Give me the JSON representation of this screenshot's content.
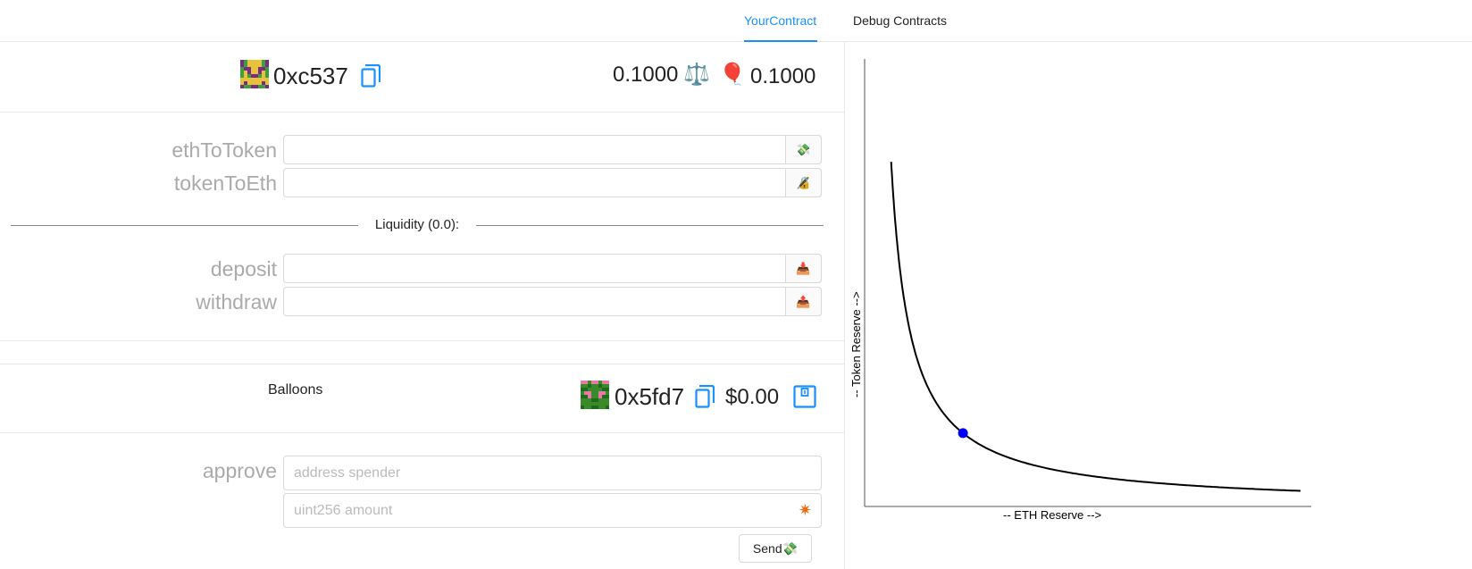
{
  "nav": {
    "tabs": [
      {
        "label": "YourContract",
        "active": true
      },
      {
        "label": "Debug Contracts",
        "active": false
      }
    ]
  },
  "account": {
    "address": "0xc537",
    "eth_balance": "0.1000",
    "token_balance": "0.1000"
  },
  "swap": {
    "eth_to_token_label": "ethToToken",
    "token_to_eth_label": "tokenToEth"
  },
  "liquidity": {
    "title": "Liquidity (0.0):",
    "deposit_label": "deposit",
    "withdraw_label": "withdraw"
  },
  "token": {
    "name": "Balloons",
    "address": "0x5fd7",
    "usd_balance": "$0.00"
  },
  "approve": {
    "label": "approve",
    "spender_placeholder": "address spender",
    "amount_placeholder": "uint256 amount",
    "send_label": "Send💸"
  },
  "chart_data": {
    "type": "line",
    "title": "",
    "xlabel": "-- ETH Reserve -->",
    "ylabel": "-- Token Reserve -->",
    "curve": "x*y=k",
    "point": {
      "x": 1,
      "y": 1
    },
    "point_color": "#0000ff",
    "grid": false
  },
  "colors": {
    "accent": "#1890ff"
  }
}
